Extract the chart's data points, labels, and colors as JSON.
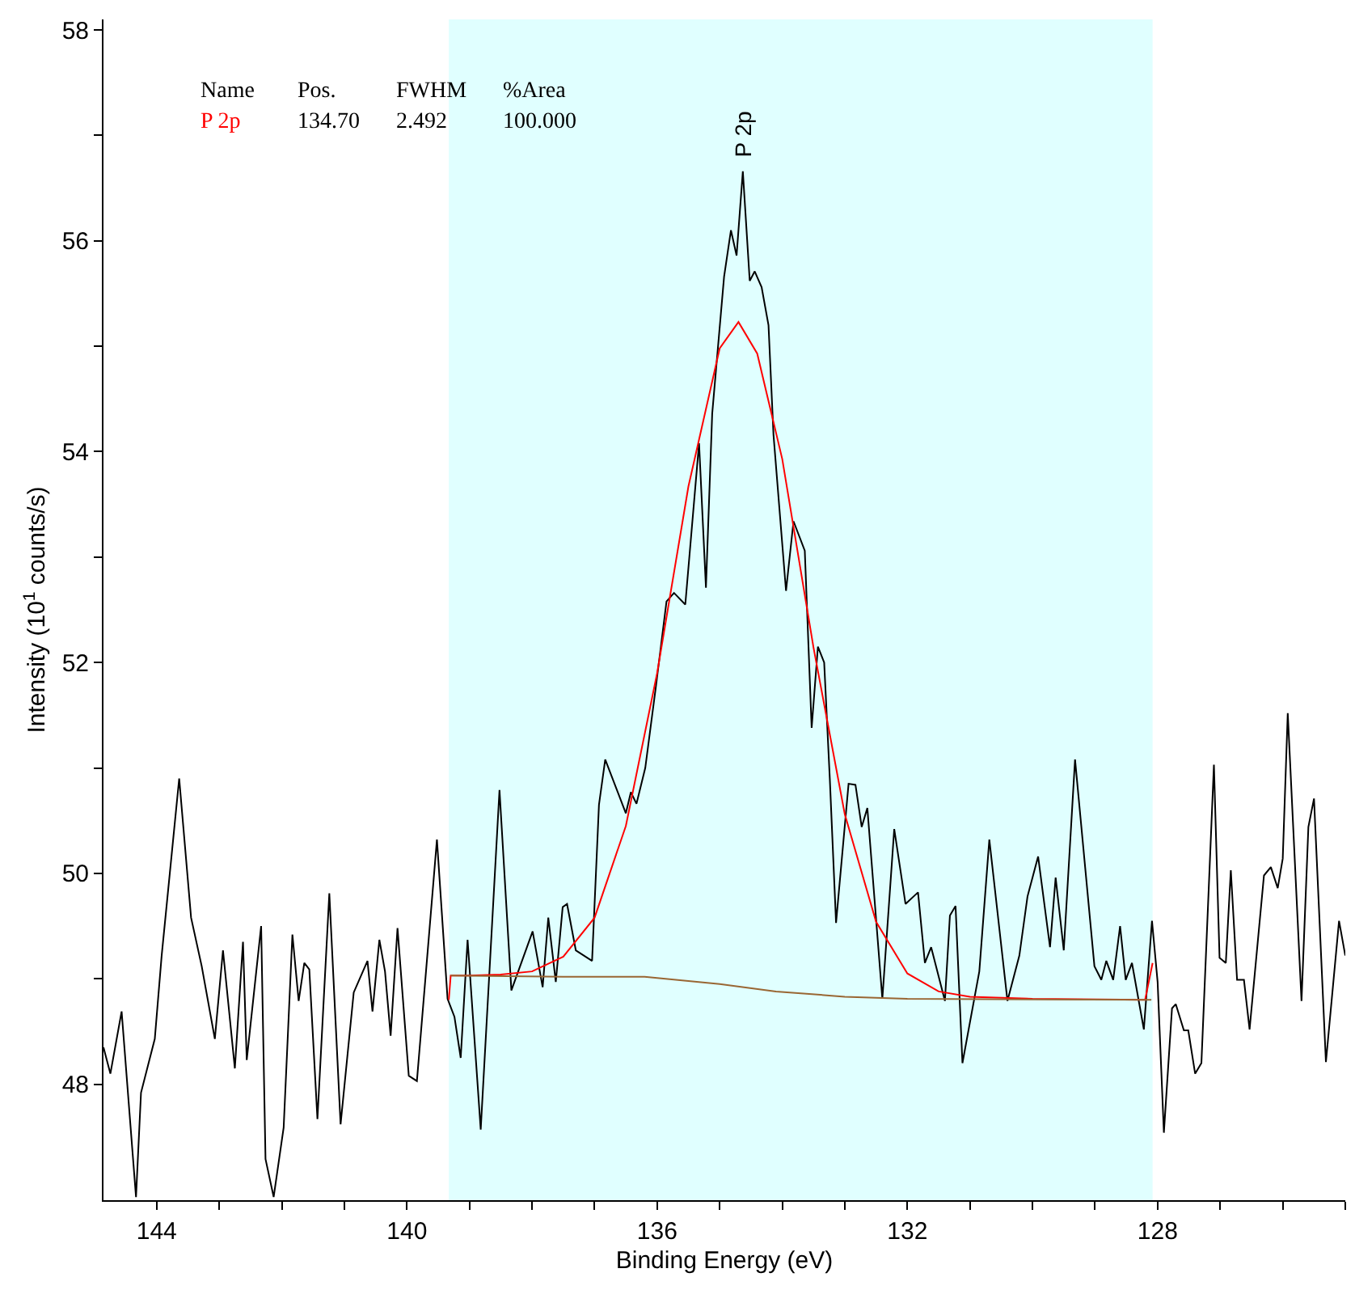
{
  "chart_data": {
    "type": "line",
    "xlabel": "Binding Energy (eV)",
    "ylabel": "Intensity (10$^{1}$ counts/s)",
    "xlim": [
      144.85,
      125.0
    ],
    "ylim": [
      46.9,
      58.1
    ],
    "xticks": [
      144,
      {
        "value": 143,
        "label": null
      },
      {
        "value": 142,
        "label": null
      },
      {
        "value": 141,
        "label": null
      },
      140,
      {
        "value": 139,
        "label": null
      },
      {
        "value": 138,
        "label": null
      },
      {
        "value": 137,
        "label": null
      },
      136,
      {
        "value": 135,
        "label": null
      },
      {
        "value": 134,
        "label": null
      },
      {
        "value": 133,
        "label": null
      },
      132,
      {
        "value": 131,
        "label": null
      },
      {
        "value": 130,
        "label": null
      },
      {
        "value": 129,
        "label": null
      },
      128,
      {
        "value": 127,
        "label": null
      },
      {
        "value": 126,
        "label": null
      },
      {
        "value": 125,
        "label": null
      }
    ],
    "yticks": [
      48,
      {
        "value": 49,
        "label": null
      },
      50,
      {
        "value": 51,
        "label": null
      },
      52,
      {
        "value": 53,
        "label": null
      },
      54,
      {
        "value": 55,
        "label": null
      },
      56,
      {
        "value": 57,
        "label": null
      },
      58
    ],
    "grid": false,
    "legend": false,
    "marker": "none",
    "line_style": "solid",
    "bands": [
      {
        "axis": "x",
        "from": 139.33,
        "to": 128.08,
        "color": "#e0ffff"
      }
    ],
    "annotations": [
      "Name",
      "Pos.",
      "FWHM",
      "%Area",
      "134.70",
      "2.492",
      "100.000",
      "P 2p"
    ],
    "series": [
      {
        "color": "#000000",
        "x": [
          144.85,
          144.74,
          144.56,
          144.33,
          144.25,
          144.03,
          143.92,
          143.64,
          143.45,
          143.28,
          143.07,
          142.94,
          142.75,
          142.62,
          142.56,
          142.33,
          142.26,
          142.13,
          141.97,
          141.83,
          141.73,
          141.64,
          141.56,
          141.43,
          141.24,
          141.06,
          140.85,
          140.63,
          140.55,
          140.44,
          140.35,
          140.26,
          140.15,
          139.97,
          139.84,
          139.52,
          139.35,
          139.24,
          139.14,
          139.03,
          138.82,
          138.52,
          138.33,
          137.99,
          137.83,
          137.74,
          137.62,
          137.51,
          137.44,
          137.3,
          137.04,
          136.93,
          136.83,
          136.5,
          136.42,
          136.33,
          136.19,
          136.02,
          135.85,
          135.73,
          135.55,
          135.33,
          135.22,
          135.12,
          134.93,
          134.82,
          134.73,
          134.63,
          134.52,
          134.44,
          134.33,
          134.22,
          134.14,
          133.94,
          133.82,
          133.64,
          133.53,
          133.43,
          133.33,
          133.24,
          133.14,
          132.94,
          132.83,
          132.73,
          132.64,
          132.4,
          132.21,
          132.03,
          131.83,
          131.72,
          131.62,
          131.4,
          131.32,
          131.23,
          131.12,
          130.85,
          130.69,
          130.4,
          130.21,
          130.08,
          129.91,
          129.72,
          129.63,
          129.5,
          129.32,
          129.01,
          128.9,
          128.82,
          128.71,
          128.6,
          128.51,
          128.41,
          128.22,
          128.09,
          128.0,
          127.9,
          127.77,
          127.71,
          127.58,
          127.51,
          127.4,
          127.3,
          127.1,
          127.01,
          126.91,
          126.83,
          126.73,
          126.62,
          126.53,
          126.3,
          126.19,
          126.08,
          126.0,
          125.92,
          125.7,
          125.59,
          125.5,
          125.31,
          125.1,
          125.0
        ],
        "values": [
          48.35,
          48.1,
          48.69,
          46.93,
          47.92,
          48.43,
          49.22,
          50.9,
          49.58,
          49.12,
          48.43,
          49.27,
          48.15,
          49.35,
          48.23,
          49.5,
          47.29,
          46.93,
          47.59,
          49.42,
          48.79,
          49.15,
          49.09,
          47.67,
          49.81,
          47.62,
          48.87,
          49.17,
          48.69,
          49.37,
          49.07,
          48.46,
          49.48,
          48.08,
          48.03,
          50.32,
          48.81,
          48.64,
          48.25,
          49.37,
          47.57,
          50.79,
          48.89,
          49.45,
          48.92,
          49.58,
          48.97,
          49.68,
          49.71,
          49.27,
          49.17,
          50.65,
          51.08,
          50.57,
          50.77,
          50.66,
          51.0,
          51.77,
          52.58,
          52.66,
          52.55,
          54.08,
          52.71,
          54.36,
          55.66,
          56.1,
          55.86,
          56.66,
          55.62,
          55.71,
          55.56,
          55.2,
          54.16,
          52.68,
          53.34,
          53.06,
          51.38,
          52.15,
          52.0,
          50.9,
          49.53,
          50.85,
          50.84,
          50.44,
          50.62,
          48.81,
          50.42,
          49.71,
          49.82,
          49.15,
          49.3,
          48.79,
          49.6,
          49.69,
          48.2,
          49.07,
          50.32,
          48.79,
          49.22,
          49.78,
          50.16,
          49.3,
          49.96,
          49.27,
          51.08,
          49.12,
          48.99,
          49.17,
          48.99,
          49.5,
          48.99,
          49.15,
          48.52,
          49.55,
          48.97,
          47.54,
          48.72,
          48.76,
          48.51,
          48.51,
          48.1,
          48.2,
          51.03,
          49.2,
          49.15,
          50.03,
          48.99,
          48.99,
          48.52,
          49.98,
          50.06,
          49.86,
          50.14,
          51.52,
          48.79,
          50.44,
          50.71,
          48.21,
          49.55,
          49.22
        ]
      },
      {
        "name": "P 2p",
        "color": "#ff0000",
        "x": [
          139.33,
          139.3,
          139.0,
          138.5,
          138.0,
          137.5,
          137.0,
          136.5,
          136.0,
          135.5,
          135.0,
          134.7,
          134.4,
          134.0,
          133.5,
          133.0,
          132.5,
          132.0,
          131.5,
          131.0,
          130.0,
          128.2,
          128.08
        ],
        "values": [
          48.8,
          49.03,
          49.03,
          49.04,
          49.07,
          49.21,
          49.58,
          50.45,
          51.9,
          53.67,
          54.98,
          55.23,
          54.93,
          53.93,
          52.14,
          50.56,
          49.54,
          49.05,
          48.88,
          48.83,
          48.81,
          48.8,
          49.15
        ]
      },
      {
        "color": "#996633",
        "x": [
          139.3,
          137.5,
          136.2,
          135.0,
          134.1,
          133.0,
          132.0,
          128.1
        ],
        "values": [
          49.03,
          49.02,
          49.02,
          48.95,
          48.88,
          48.83,
          48.81,
          48.8
        ]
      }
    ]
  }
}
